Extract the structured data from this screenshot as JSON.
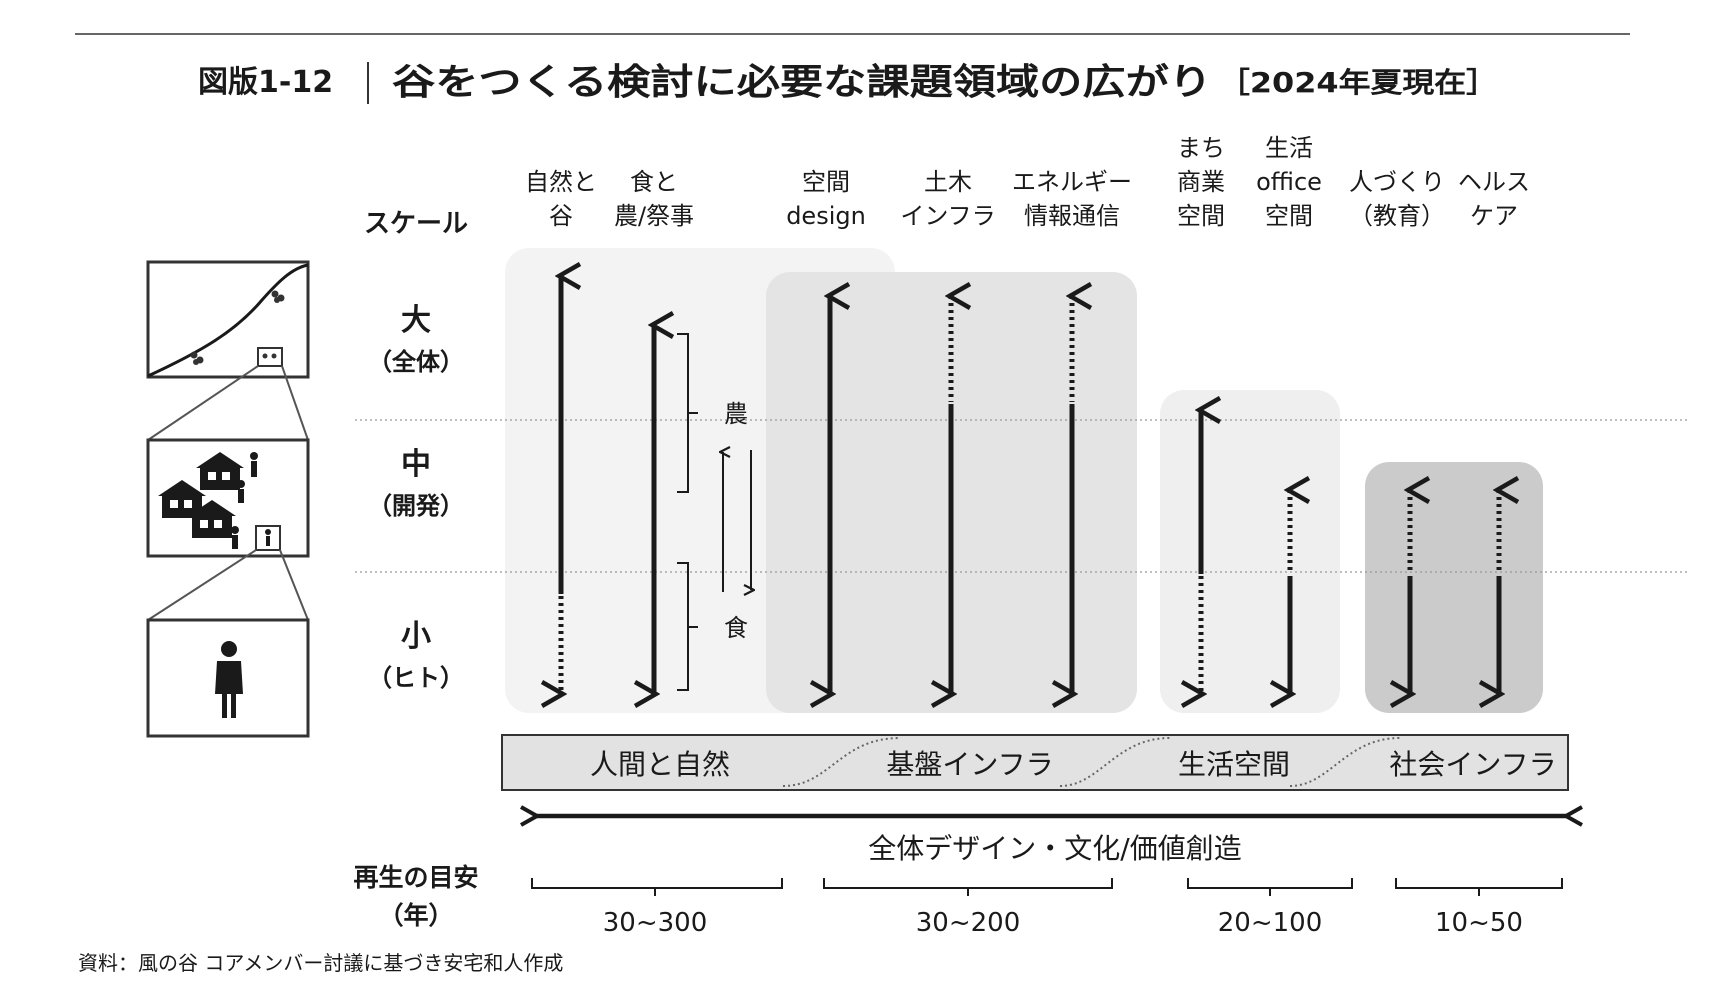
{
  "figure": {
    "number": "図版1-12",
    "title": "谷をつくる検討に必要な課題領域の広がり",
    "date_note": "［2024年夏現在］"
  },
  "scale": {
    "header": "スケール",
    "levels": [
      {
        "name": "大",
        "sub": "（全体）"
      },
      {
        "name": "中",
        "sub": "（開発）"
      },
      {
        "name": "小",
        "sub": "（ヒト）"
      }
    ]
  },
  "columns": [
    {
      "lines": [
        "自然と",
        "谷"
      ]
    },
    {
      "lines": [
        "食と",
        "農/祭事"
      ]
    },
    {
      "lines": [
        "空間",
        "design"
      ]
    },
    {
      "lines": [
        "土木",
        "インフラ"
      ]
    },
    {
      "lines": [
        "エネルギー",
        "情報通信"
      ]
    },
    {
      "lines": [
        "まち",
        "商業",
        "空間"
      ]
    },
    {
      "lines": [
        "生活",
        "office",
        "空間"
      ]
    },
    {
      "lines": [
        "人づくり",
        "（教育）"
      ]
    },
    {
      "lines": [
        "ヘルス",
        "ケア"
      ]
    }
  ],
  "cycle_labels": {
    "upper": "農",
    "lower": "食"
  },
  "domains": [
    "人間と自然",
    "基盤インフラ",
    "生活空間",
    "社会インフラ"
  ],
  "overall_label": "全体デザイン・文化/価値創造",
  "regeneration": {
    "label_line1": "再生の目安",
    "label_line2": "（年）",
    "ranges": [
      "30~300",
      "30~200",
      "20~100",
      "10~50"
    ]
  },
  "source": "資料：風の谷 コアメンバー討議に基づき安宅和人作成",
  "colors": {
    "panel_light": "#f3f3f3",
    "panel_mid": "#e4e4e4",
    "panel_dark": "#cbcbcb",
    "ink": "#1a1a1a"
  }
}
